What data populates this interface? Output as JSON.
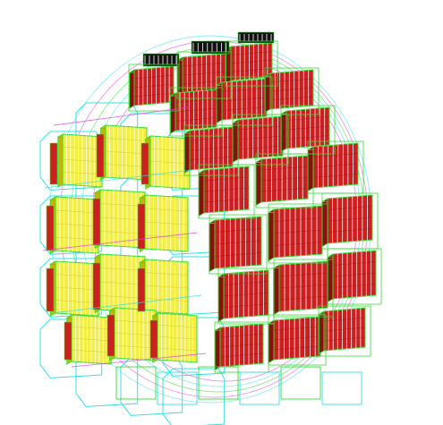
{
  "figure": {
    "subject": "wireframe-detector-barrel",
    "background_color": "#ffffff",
    "colors": {
      "module_red": "#cc1f1f",
      "module_red_dark": "#8a1010",
      "module_yellow": "#f2ee44",
      "module_yellow_dark": "#c9b400",
      "wire_green": "#33dd33",
      "wire_cyan": "#33e0e6",
      "wire_magenta": "#e03ce0",
      "wire_white": "#ffffff",
      "wire_black": "#111111"
    }
  }
}
